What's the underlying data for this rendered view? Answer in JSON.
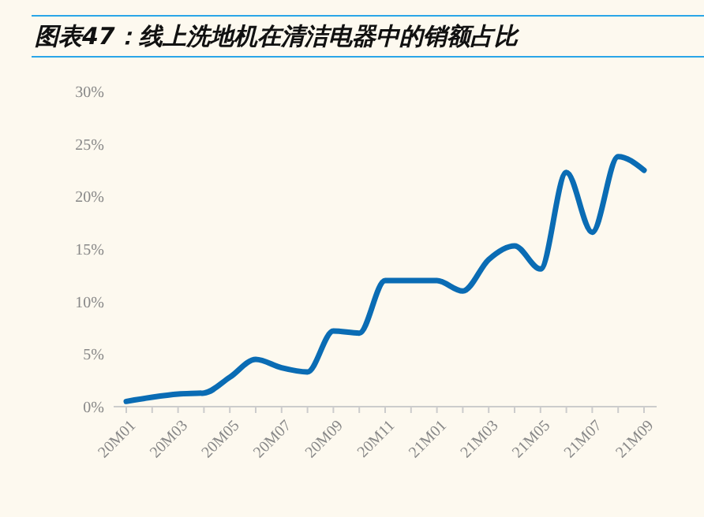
{
  "chart_data": {
    "type": "line",
    "title": "图表47：线上洗地机在清洁电器中的销额占比",
    "categories": [
      "20M01",
      null,
      "20M03",
      null,
      "20M05",
      null,
      "20M07",
      null,
      "20M09",
      null,
      "20M11",
      null,
      "21M01",
      null,
      "21M03",
      null,
      "21M05",
      null,
      "21M07",
      null,
      "21M09"
    ],
    "series": [
      {
        "color": "#0a6cb4",
        "values": [
          0.5,
          0.9,
          1.2,
          1.3,
          2.8,
          4.5,
          3.7,
          3.3,
          7.2,
          7.0,
          12.0,
          12.0,
          12.0,
          11.0,
          14.0,
          15.3,
          13.1,
          22.3,
          16.6,
          23.8,
          22.5
        ]
      }
    ],
    "ylim": [
      0,
      30
    ],
    "yticks": [
      {
        "value": 0,
        "label": "0%"
      },
      {
        "value": 5,
        "label": "5%"
      },
      {
        "value": 10,
        "label": "10%"
      },
      {
        "value": 15,
        "label": "15%"
      },
      {
        "value": 20,
        "label": "20%"
      },
      {
        "value": 25,
        "label": "25%"
      },
      {
        "value": 30,
        "label": "30%"
      }
    ],
    "marker": "none",
    "line_style": "solid",
    "grid": false
  }
}
